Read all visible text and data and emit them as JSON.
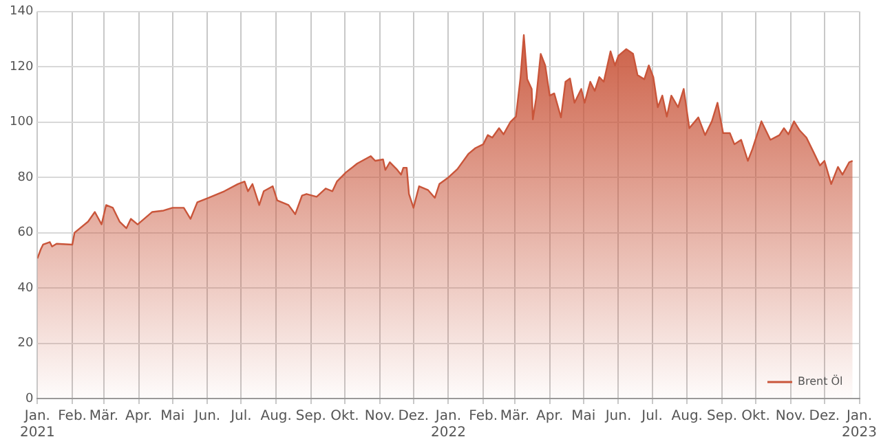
{
  "chart_data": {
    "type": "area",
    "x": [
      "2021-01-01",
      "2021-01-04",
      "2021-01-06",
      "2021-01-12",
      "2021-01-14",
      "2021-01-18",
      "2021-02-01",
      "2021-02-03",
      "2021-02-15",
      "2021-02-21",
      "2021-02-27",
      "2021-03-03",
      "2021-03-09",
      "2021-03-15",
      "2021-03-21",
      "2021-03-25",
      "2021-03-31",
      "2021-04-13",
      "2021-04-23",
      "2021-05-01",
      "2021-05-11",
      "2021-05-17",
      "2021-05-23",
      "2021-06-02",
      "2021-06-16",
      "2021-06-28",
      "2021-07-04",
      "2021-07-07",
      "2021-07-11",
      "2021-07-17",
      "2021-07-21",
      "2021-07-29",
      "2021-08-02",
      "2021-08-12",
      "2021-08-18",
      "2021-08-24",
      "2021-08-28",
      "2021-09-06",
      "2021-09-14",
      "2021-09-20",
      "2021-09-24",
      "2021-10-02",
      "2021-10-12",
      "2021-10-24",
      "2021-10-28",
      "2021-11-04",
      "2021-11-06",
      "2021-11-10",
      "2021-11-16",
      "2021-11-20",
      "2021-11-22",
      "2021-11-25",
      "2021-11-27",
      "2021-12-01",
      "2021-12-06",
      "2021-12-14",
      "2021-12-20",
      "2021-12-24",
      "2022-01-01",
      "2022-01-09",
      "2022-01-19",
      "2022-01-25",
      "2022-02-01",
      "2022-02-05",
      "2022-02-09",
      "2022-02-15",
      "2022-02-19",
      "2022-02-25",
      "2022-03-02",
      "2022-03-06",
      "2022-03-09",
      "2022-03-12",
      "2022-03-16",
      "2022-03-17",
      "2022-03-20",
      "2022-03-24",
      "2022-03-28",
      "2022-04-01",
      "2022-04-05",
      "2022-04-11",
      "2022-04-15",
      "2022-04-19",
      "2022-04-23",
      "2022-04-29",
      "2022-05-02",
      "2022-05-07",
      "2022-05-11",
      "2022-05-15",
      "2022-05-19",
      "2022-05-25",
      "2022-05-29",
      "2022-06-01",
      "2022-06-08",
      "2022-06-14",
      "2022-06-18",
      "2022-06-24",
      "2022-06-28",
      "2022-07-02",
      "2022-07-06",
      "2022-07-10",
      "2022-07-14",
      "2022-07-18",
      "2022-07-24",
      "2022-07-29",
      "2022-08-03",
      "2022-08-11",
      "2022-08-17",
      "2022-08-23",
      "2022-08-28",
      "2022-09-02",
      "2022-09-08",
      "2022-09-12",
      "2022-09-18",
      "2022-09-24",
      "2022-09-28",
      "2022-10-06",
      "2022-10-14",
      "2022-10-22",
      "2022-10-26",
      "2022-10-30",
      "2022-11-04",
      "2022-11-09",
      "2022-11-15",
      "2022-11-21",
      "2022-11-27",
      "2022-12-01",
      "2022-12-07",
      "2022-12-13",
      "2022-12-17",
      "2022-12-23",
      "2022-12-26"
    ],
    "series": [
      {
        "name": "Brent Öl",
        "color": "#c9553a",
        "values": [
          50.7,
          54,
          55.7,
          56.6,
          55,
          56,
          55.7,
          60,
          64,
          67.5,
          63,
          70,
          69,
          64,
          61.6,
          65,
          63,
          67.5,
          68,
          69,
          69,
          65,
          71,
          72.6,
          75,
          77.6,
          78.5,
          75,
          77.6,
          70,
          75,
          76.8,
          71.7,
          70,
          66.7,
          73.4,
          74,
          73,
          76,
          75,
          78.5,
          81.8,
          85,
          87.7,
          86,
          86.5,
          82.7,
          85.5,
          83,
          81,
          83.5,
          83.5,
          74,
          69,
          76.8,
          75.4,
          72.6,
          77.6,
          80,
          83,
          88.6,
          90.6,
          92,
          95.3,
          94.4,
          97.8,
          95.6,
          100,
          102,
          116,
          131.5,
          115.5,
          112,
          101,
          108.8,
          124.7,
          120.5,
          109.6,
          110.4,
          101.7,
          114.6,
          115.8,
          107,
          112,
          107,
          114.6,
          111.3,
          116.3,
          114.6,
          125.6,
          120.5,
          124,
          126.4,
          124.7,
          117,
          115.5,
          120.5,
          116.3,
          105.4,
          109.6,
          102,
          109.6,
          105.4,
          112,
          97.8,
          101.7,
          95.3,
          100.3,
          107,
          96,
          96,
          92,
          93.6,
          86,
          90.2,
          100.3,
          93.6,
          95.3,
          97.8,
          95.6,
          100.3,
          97,
          94.4,
          89.4,
          84.3,
          86,
          77.6,
          83.8,
          81,
          85.5,
          86
        ]
      }
    ],
    "xlim": [
      "2021-01-01",
      "2023-01-01"
    ],
    "xticks": [
      {
        "value": "2021-01",
        "label": "Jan. 2021"
      },
      {
        "value": "2021-02",
        "label": "Feb."
      },
      {
        "value": "2021-03",
        "label": "Mär."
      },
      {
        "value": "2021-04",
        "label": "Apr."
      },
      {
        "value": "2021-05",
        "label": "Mai"
      },
      {
        "value": "2021-06",
        "label": "Jun."
      },
      {
        "value": "2021-07",
        "label": "Jul."
      },
      {
        "value": "2021-08",
        "label": "Aug."
      },
      {
        "value": "2021-09",
        "label": "Sep."
      },
      {
        "value": "2021-10",
        "label": "Okt."
      },
      {
        "value": "2021-11",
        "label": "Nov."
      },
      {
        "value": "2021-12",
        "label": "Dez."
      },
      {
        "value": "2022-01",
        "label": "Jan. 2022"
      },
      {
        "value": "2022-02",
        "label": "Feb."
      },
      {
        "value": "2022-03",
        "label": "Mär."
      },
      {
        "value": "2022-04",
        "label": "Apr."
      },
      {
        "value": "2022-05",
        "label": "Mai"
      },
      {
        "value": "2022-06",
        "label": "Jun."
      },
      {
        "value": "2022-07",
        "label": "Jul."
      },
      {
        "value": "2022-08",
        "label": "Aug."
      },
      {
        "value": "2022-09",
        "label": "Sep."
      },
      {
        "value": "2022-10",
        "label": "Okt."
      },
      {
        "value": "2022-11",
        "label": "Nov."
      },
      {
        "value": "2022-12",
        "label": "Dez."
      },
      {
        "value": "2023-01",
        "label": "Jan. 2023"
      }
    ],
    "ylim": [
      0,
      140
    ],
    "yticks": [
      0,
      20,
      40,
      60,
      80,
      100,
      120,
      140
    ],
    "grid": true,
    "legend": "bottom right",
    "marker": "none",
    "line_style": "solid"
  }
}
